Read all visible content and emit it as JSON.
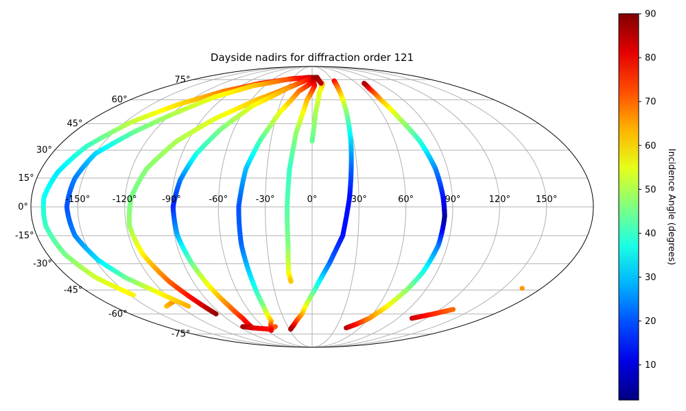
{
  "chart_data": {
    "type": "scatter",
    "projection": "mollweide",
    "title": "Dayside nadirs for diffraction order 121",
    "x_tick_labels": [
      "-150°",
      "-120°",
      "-90°",
      "-60°",
      "-30°",
      "0°",
      "30°",
      "60°",
      "90°",
      "120°",
      "150°"
    ],
    "y_tick_labels": [
      "-75°",
      "-60°",
      "-45°",
      "-30°",
      "-15°",
      "0°",
      "15°",
      "30°",
      "45°",
      "60°",
      "75°"
    ],
    "x_ticks": [
      -150,
      -120,
      -90,
      -60,
      -30,
      0,
      30,
      60,
      90,
      120,
      150
    ],
    "y_ticks": [
      -75,
      -60,
      -45,
      -30,
      -15,
      0,
      15,
      30,
      45,
      60,
      75
    ],
    "xlim": [
      -180,
      180
    ],
    "ylim": [
      -90,
      90
    ],
    "grid": true,
    "colorbar": {
      "label": "Incidence Angle (degrees)",
      "colormap": "jet",
      "min": 2,
      "max": 90,
      "ticks": [
        10,
        20,
        30,
        40,
        50,
        60,
        70,
        80,
        90
      ],
      "tick_labels": [
        "10",
        "20",
        "30",
        "40",
        "50",
        "60",
        "70",
        "80",
        "90"
      ]
    },
    "colors": {
      "grid": "#b0b0b0",
      "outline": "#000000"
    },
    "series": [
      {
        "points": [
          {
            "lon": 8,
            "lat": 77,
            "inc": 88
          },
          {
            "lon": -30,
            "lat": 76,
            "inc": 82
          },
          {
            "lon": -70,
            "lat": 72,
            "inc": 76
          },
          {
            "lon": -100,
            "lat": 66,
            "inc": 68
          },
          {
            "lon": -125,
            "lat": 57,
            "inc": 60
          },
          {
            "lon": -145,
            "lat": 46,
            "inc": 52
          },
          {
            "lon": -160,
            "lat": 32,
            "inc": 40
          },
          {
            "lon": -168,
            "lat": 18,
            "inc": 33
          },
          {
            "lon": -172,
            "lat": 5,
            "inc": 36
          },
          {
            "lon": -172,
            "lat": -10,
            "inc": 40
          },
          {
            "lon": -168,
            "lat": -25,
            "inc": 45
          },
          {
            "lon": -160,
            "lat": -38,
            "inc": 53
          },
          {
            "lon": -147,
            "lat": -48,
            "inc": 58
          }
        ]
      },
      {
        "points": [
          {
            "lon": -132,
            "lat": -55,
            "inc": 62
          },
          {
            "lon": -120,
            "lat": -52,
            "inc": 66
          }
        ]
      },
      {
        "points": [
          {
            "lon": -5,
            "lat": 77,
            "inc": 85
          },
          {
            "lon": -40,
            "lat": 75,
            "inc": 72
          },
          {
            "lon": -75,
            "lat": 70,
            "inc": 62
          },
          {
            "lon": -100,
            "lat": 62,
            "inc": 56
          },
          {
            "lon": -120,
            "lat": 50,
            "inc": 50
          },
          {
            "lon": -135,
            "lat": 40,
            "inc": 44
          },
          {
            "lon": -150,
            "lat": 28,
            "inc": 32
          },
          {
            "lon": -155,
            "lat": 15,
            "inc": 24
          },
          {
            "lon": -157,
            "lat": 0,
            "inc": 20
          },
          {
            "lon": -155,
            "lat": -15,
            "inc": 24
          },
          {
            "lon": -148,
            "lat": -28,
            "inc": 32
          },
          {
            "lon": -138,
            "lat": -38,
            "inc": 44
          },
          {
            "lon": -125,
            "lat": -46,
            "inc": 56
          },
          {
            "lon": -112,
            "lat": -55,
            "inc": 64
          }
        ]
      },
      {
        "points": [
          {
            "lon": 0,
            "lat": 77,
            "inc": 88
          },
          {
            "lon": -25,
            "lat": 70,
            "inc": 72
          },
          {
            "lon": -55,
            "lat": 60,
            "inc": 62
          },
          {
            "lon": -80,
            "lat": 48,
            "inc": 55
          },
          {
            "lon": -98,
            "lat": 35,
            "inc": 50
          },
          {
            "lon": -110,
            "lat": 20,
            "inc": 47
          },
          {
            "lon": -116,
            "lat": 5,
            "inc": 45
          },
          {
            "lon": -118,
            "lat": -10,
            "inc": 48
          },
          {
            "lon": -115,
            "lat": -25,
            "inc": 58
          },
          {
            "lon": -108,
            "lat": -40,
            "inc": 70
          },
          {
            "lon": -100,
            "lat": -52,
            "inc": 80
          },
          {
            "lon": -95,
            "lat": -60,
            "inc": 88
          }
        ]
      },
      {
        "points": [
          {
            "lon": -5,
            "lat": 76,
            "inc": 80
          },
          {
            "lon": -30,
            "lat": 68,
            "inc": 66
          },
          {
            "lon": -55,
            "lat": 56,
            "inc": 56
          },
          {
            "lon": -70,
            "lat": 42,
            "inc": 46
          },
          {
            "lon": -80,
            "lat": 28,
            "inc": 38
          },
          {
            "lon": -86,
            "lat": 14,
            "inc": 24
          },
          {
            "lon": -89,
            "lat": 0,
            "inc": 16
          },
          {
            "lon": -88,
            "lat": -15,
            "inc": 28
          },
          {
            "lon": -84,
            "lat": -30,
            "inc": 44
          },
          {
            "lon": -80,
            "lat": -42,
            "inc": 56
          },
          {
            "lon": -75,
            "lat": -55,
            "inc": 68
          },
          {
            "lon": -73,
            "lat": -63,
            "inc": 76
          },
          {
            "lon": -75,
            "lat": -70,
            "inc": 82
          }
        ]
      },
      {
        "points": [
          {
            "lon": -85,
            "lat": -69,
            "inc": 88
          },
          {
            "lon": -75,
            "lat": -70,
            "inc": 82
          },
          {
            "lon": -55,
            "lat": -71,
            "inc": 78
          },
          {
            "lon": -45,
            "lat": -69,
            "inc": 72
          }
        ]
      },
      {
        "points": [
          {
            "lon": -2,
            "lat": 72,
            "inc": 80
          },
          {
            "lon": -15,
            "lat": 66,
            "inc": 70
          },
          {
            "lon": -28,
            "lat": 52,
            "inc": 56
          },
          {
            "lon": -38,
            "lat": 35,
            "inc": 42
          },
          {
            "lon": -44,
            "lat": 20,
            "inc": 30
          },
          {
            "lon": -47,
            "lat": 0,
            "inc": 20
          },
          {
            "lon": -47,
            "lat": -20,
            "inc": 22
          },
          {
            "lon": -45,
            "lat": -40,
            "inc": 34
          },
          {
            "lon": -44,
            "lat": -55,
            "inc": 46
          },
          {
            "lon": -45,
            "lat": -65,
            "inc": 62
          },
          {
            "lon": -55,
            "lat": -72,
            "inc": 80
          }
        ]
      },
      {
        "points": [
          {
            "lon": 2,
            "lat": 76,
            "inc": 88
          },
          {
            "lon": 3,
            "lat": 70,
            "inc": 80
          },
          {
            "lon": -5,
            "lat": 60,
            "inc": 64
          },
          {
            "lon": -12,
            "lat": 40,
            "inc": 48
          },
          {
            "lon": -15,
            "lat": 20,
            "inc": 40
          },
          {
            "lon": -16,
            "lat": 0,
            "inc": 42
          },
          {
            "lon": -16,
            "lat": -20,
            "inc": 46
          },
          {
            "lon": -17,
            "lat": -35,
            "inc": 55
          },
          {
            "lon": -16,
            "lat": -40,
            "inc": 62
          }
        ]
      },
      {
        "points": [
          {
            "lon": 14,
            "lat": 72,
            "inc": 65
          },
          {
            "lon": 8,
            "lat": 65,
            "inc": 56
          },
          {
            "lon": 3,
            "lat": 52,
            "inc": 50
          },
          {
            "lon": 0,
            "lat": 35,
            "inc": 44
          }
        ]
      },
      {
        "points": [
          {
            "lon": 8,
            "lat": 77,
            "inc": 88
          },
          {
            "lon": 12,
            "lat": 72,
            "inc": 85
          }
        ]
      },
      {
        "points": [
          {
            "lon": 32,
            "lat": 74,
            "inc": 80
          },
          {
            "lon": 31,
            "lat": 68,
            "inc": 68
          },
          {
            "lon": 30,
            "lat": 55,
            "inc": 50
          },
          {
            "lon": 28,
            "lat": 35,
            "inc": 32
          },
          {
            "lon": 26,
            "lat": 20,
            "inc": 22
          },
          {
            "lon": 24,
            "lat": 5,
            "inc": 14
          },
          {
            "lon": 20,
            "lat": -15,
            "inc": 14
          },
          {
            "lon": 12,
            "lat": -30,
            "inc": 22
          },
          {
            "lon": 2,
            "lat": -45,
            "inc": 40
          },
          {
            "lon": -10,
            "lat": -60,
            "inc": 62
          },
          {
            "lon": -22,
            "lat": -68,
            "inc": 78
          },
          {
            "lon": -28,
            "lat": -71,
            "inc": 86
          }
        ]
      },
      {
        "points": [
          {
            "lon": 43,
            "lat": -70,
            "inc": 86
          },
          {
            "lon": 52,
            "lat": -67,
            "inc": 78
          },
          {
            "lon": 60,
            "lat": -63,
            "inc": 68
          },
          {
            "lon": 68,
            "lat": -55,
            "inc": 58
          },
          {
            "lon": 75,
            "lat": -45,
            "inc": 48
          },
          {
            "lon": 80,
            "lat": -35,
            "inc": 38
          },
          {
            "lon": 84,
            "lat": -20,
            "inc": 24
          },
          {
            "lon": 85,
            "lat": -5,
            "inc": 4
          },
          {
            "lon": 84,
            "lat": 5,
            "inc": 14
          },
          {
            "lon": 82,
            "lat": 20,
            "inc": 24
          },
          {
            "lon": 78,
            "lat": 35,
            "inc": 38
          },
          {
            "lon": 72,
            "lat": 48,
            "inc": 50
          },
          {
            "lon": 68,
            "lat": 60,
            "inc": 62
          },
          {
            "lon": 68,
            "lat": 68,
            "inc": 76
          },
          {
            "lon": 70,
            "lat": 72,
            "inc": 86
          }
        ]
      },
      {
        "points": [
          {
            "lon": 105,
            "lat": -63,
            "inc": 84
          },
          {
            "lon": 120,
            "lat": -60,
            "inc": 76
          },
          {
            "lon": 132,
            "lat": -57,
            "inc": 70
          }
        ]
      },
      {
        "points": [
          {
            "lon": 165,
            "lat": -44,
            "inc": 66
          }
        ]
      }
    ]
  }
}
